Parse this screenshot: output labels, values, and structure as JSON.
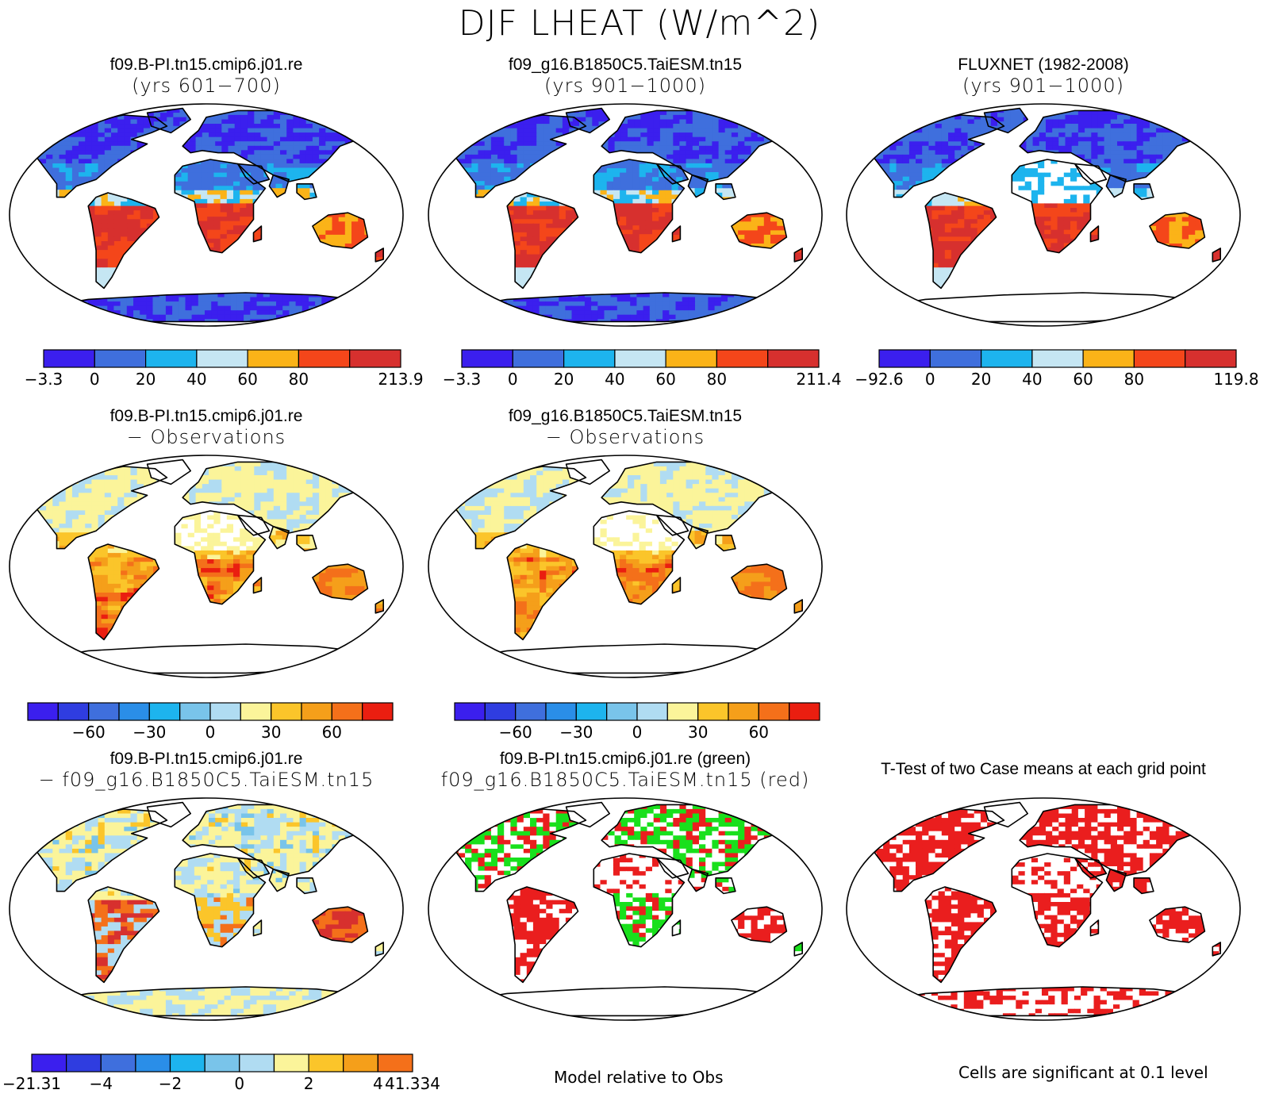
{
  "figure": {
    "title": "DJF LHEAT (W/m^2)"
  },
  "colors": {
    "c7": [
      "#3b1fee",
      "#3f6fdd",
      "#1db4ee",
      "#c5e6f3",
      "#fbb318",
      "#f4461a",
      "#d7302e"
    ],
    "c12": [
      "#3b1fee",
      "#2f3de0",
      "#3f6fdd",
      "#2a8ee8",
      "#1db4ee",
      "#79c4ea",
      "#b0dcf2",
      "#fbf49a",
      "#fbc52a",
      "#f59f1a",
      "#f4701a",
      "#ea1e10",
      "#d7302e"
    ],
    "green": "#19e01c",
    "red": "#ea1e1e",
    "white": "#ffffff"
  },
  "panels": [
    {
      "id": "p1",
      "title": "f09.B-PI.tn15.cmip6.j01.re",
      "subtitle": "(yrs 601−700)",
      "style": "abs",
      "colorbar": {
        "n": 7,
        "labels": [
          "−3.3",
          "0",
          "20",
          "40",
          "60",
          "80",
          "213.9"
        ],
        "label_at": [
          0,
          1,
          2,
          3,
          4,
          5,
          7
        ]
      }
    },
    {
      "id": "p2",
      "title": "f09_g16.B1850C5.TaiESM.tn15",
      "subtitle": "(yrs 901−1000)",
      "style": "abs",
      "colorbar": {
        "n": 7,
        "labels": [
          "−3.3",
          "0",
          "20",
          "40",
          "60",
          "80",
          "211.4"
        ],
        "label_at": [
          0,
          1,
          2,
          3,
          4,
          5,
          7
        ]
      }
    },
    {
      "id": "p3",
      "title": "FLUXNET (1982-2008)",
      "subtitle": "(yrs 901−1000)",
      "style": "obs",
      "colorbar": {
        "n": 7,
        "labels": [
          "−92.6",
          "0",
          "20",
          "40",
          "60",
          "80",
          "119.8"
        ],
        "label_at": [
          0,
          1,
          2,
          3,
          4,
          5,
          7
        ]
      }
    },
    {
      "id": "p4",
      "title": "f09.B-PI.tn15.cmip6.j01.re",
      "subtitle": "− Observations",
      "style": "diff",
      "colorbar": {
        "n": 12,
        "labels": [
          "−60",
          "−30",
          "0",
          "30",
          "60"
        ],
        "label_at": [
          2,
          4,
          6,
          8,
          10
        ]
      }
    },
    {
      "id": "p5",
      "title": "f09_g16.B1850C5.TaiESM.tn15",
      "subtitle": "− Observations",
      "style": "diff",
      "colorbar": {
        "n": 12,
        "labels": [
          "−60",
          "−30",
          "0",
          "30",
          "60"
        ],
        "label_at": [
          2,
          4,
          6,
          8,
          10
        ]
      }
    },
    {
      "id": "p6",
      "title": "f09.B-PI.tn15.cmip6.j01.re",
      "subtitle": "− f09_g16.B1850C5.TaiESM.tn15",
      "style": "modeldiff",
      "colorbar": {
        "n": 11,
        "labels": [
          "−21.31",
          "−4",
          "−2",
          "0",
          "2",
          "4",
          "41.334"
        ],
        "label_at": [
          0,
          2,
          4,
          6,
          8,
          10,
          11
        ]
      }
    },
    {
      "id": "p7",
      "title": "f09.B-PI.tn15.cmip6.j01.re (green)",
      "subtitle": "f09_g16.B1850C5.TaiESM.tn15 (red)",
      "style": "greenred"
    },
    {
      "id": "p8",
      "title": "T-Test of two Case means at each grid point",
      "subtitle": "",
      "style": "ttest"
    }
  ],
  "notes": {
    "model_relative": "Model relative to Obs",
    "significance": "Cells are significant at 0.1 level"
  }
}
